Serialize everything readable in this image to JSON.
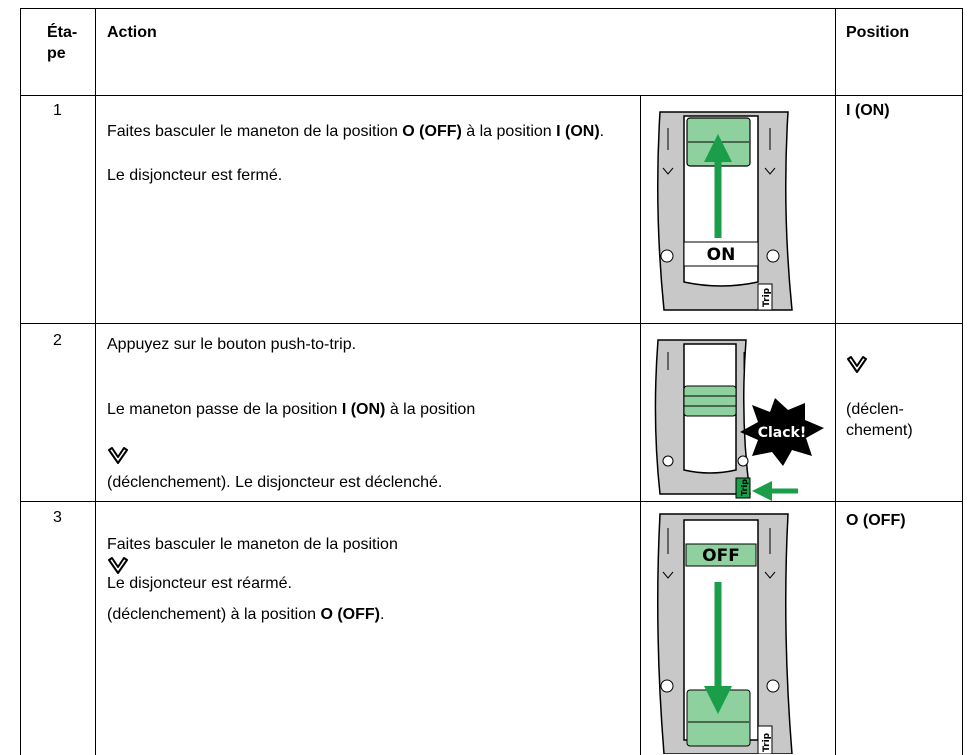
{
  "table": {
    "header": {
      "step": "Éta-\npe",
      "action": "Action",
      "position": "Position"
    },
    "rows": [
      {
        "step": "1",
        "action": [
          [
            "Faites basculer le maneton de la position ",
            "O (OFF)",
            " à la position ",
            "I (ON)",
            "."
          ],
          [
            "Le disjoncteur est fermé."
          ]
        ],
        "illustration": {
          "label": "ON",
          "trip": "Trip"
        },
        "position": "I (ON)"
      },
      {
        "step": "2",
        "action": [
          [
            "Appuyez sur le bouton push-to-trip."
          ],
          [
            "Le maneton passe de la position ",
            "I (ON)",
            " à la position ",
            "(déclenchement). Le disjoncteur est déclenché."
          ]
        ],
        "illustration": {
          "label": "Clack!",
          "trip": "Trip"
        },
        "position": "(déclen-\nchement)"
      },
      {
        "step": "3",
        "action": [
          [
            "Faites basculer le maneton de la position ",
            "(déclenchement) à la position ",
            "O (OFF)",
            "."
          ],
          [
            "Le disjoncteur est réarmé."
          ]
        ],
        "illustration": {
          "label": "OFF",
          "trip": "Trip"
        },
        "position": "O (OFF)"
      }
    ]
  }
}
